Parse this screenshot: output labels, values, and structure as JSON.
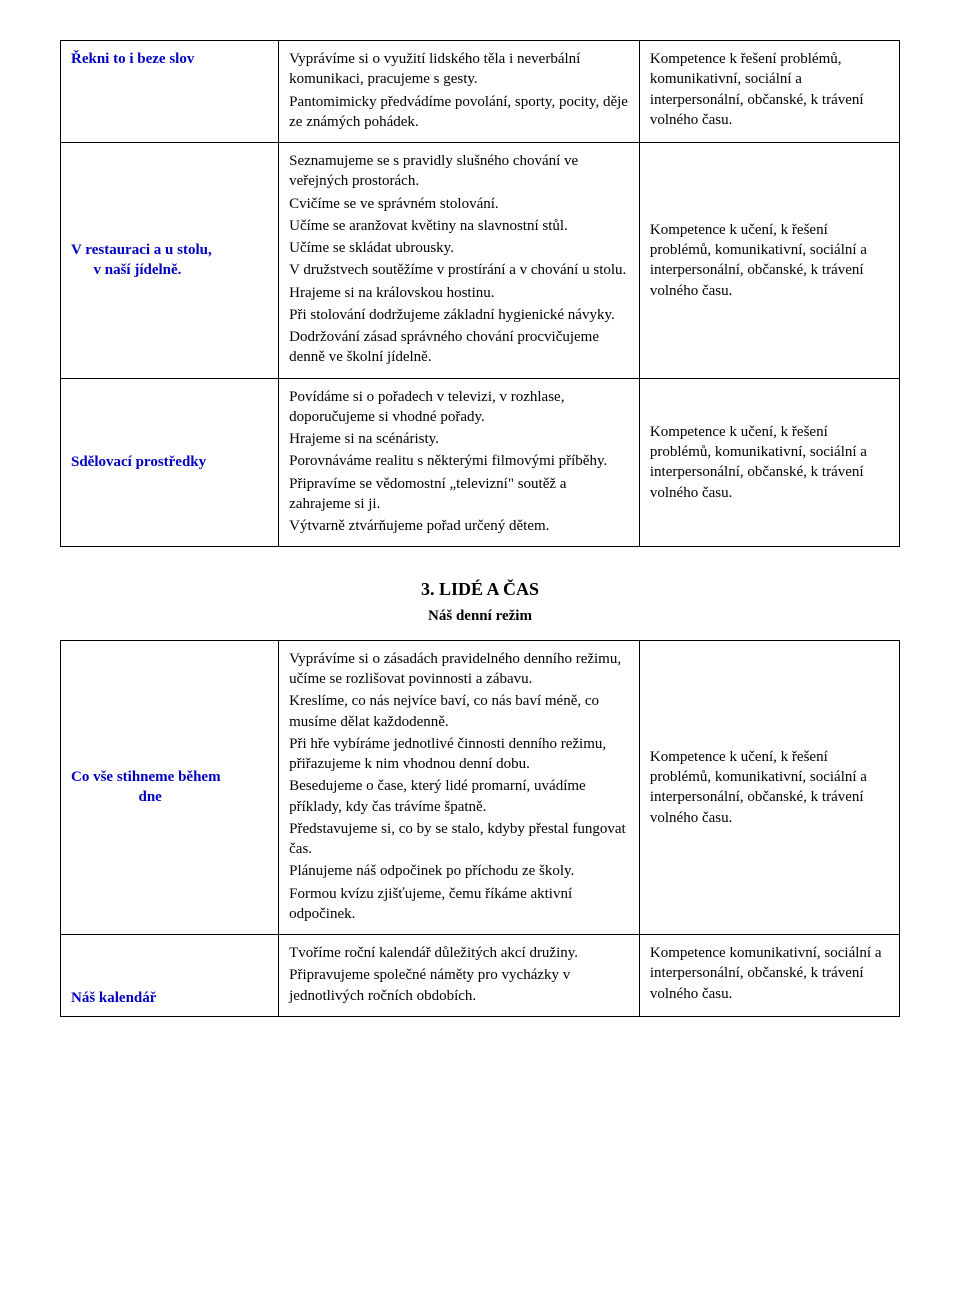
{
  "colors": {
    "topic": "#0000c0",
    "text": "#000000",
    "border": "#000000",
    "background": "#ffffff"
  },
  "typography": {
    "font_family": "Times New Roman",
    "body_size_pt": 11,
    "heading_size_pt": 13
  },
  "table1": {
    "rows": [
      {
        "topic": "Řekni to i beze slov",
        "activity": [
          "Vyprávíme si o využití lidského těla i neverbální komunikaci, pracujeme s gesty.",
          "Pantomimicky předvádíme povolání, sporty, pocity, děje ze známých pohádek."
        ],
        "competence": "Kompetence k řešení problémů, komunikativní, sociální a interpersonální, občanské, k trávení volného času."
      },
      {
        "topic_html": "V restauraci a u stolu,<br>&nbsp;&nbsp;&nbsp;&nbsp;&nbsp;v naší jídelně.",
        "activity": [
          "Seznamujeme se s pravidly slušného chování ve veřejných prostorách.",
          "Cvičíme se ve správném stolování.",
          "Učíme se aranžovat květiny na slavnostní stůl.",
          "Učíme se skládat ubrousky.",
          "V družstvech soutěžíme v prostírání a v chování u stolu.",
          "Hrajeme si na královskou hostinu.",
          "Při stolování dodržujeme základní hygienické návyky.",
          "Dodržování zásad správného chování procvičujeme denně ve školní jídelně."
        ],
        "competence": "Kompetence k učení, k řešení problémů, komunikativní, sociální a interpersonální, občanské, k trávení volného času."
      },
      {
        "topic": "Sdělovací prostředky",
        "activity": [
          "Povídáme si o pořadech v televizi, v rozhlase, doporučujeme si vhodné pořady.",
          "Hrajeme si na scénáristy.",
          "Porovnáváme realitu s některými filmovými příběhy.",
          "Připravíme se vědomostní „televizní\" soutěž a zahrajeme si ji.",
          "Výtvarně ztvárňujeme pořad určený dětem."
        ],
        "competence": "Kompetence k učení, k řešení problémů, komunikativní, sociální a interpersonální, občanské, k trávení volného času."
      }
    ]
  },
  "section2": {
    "number_title": "3.   LIDÉ A ČAS",
    "subtitle": "Náš denní režim"
  },
  "table2": {
    "rows": [
      {
        "topic_html": "Co vše stihneme během<br><span style='display:inline-block;width:100%;text-align:center;'>dne</span>",
        "topic_plain": "Co vše stihneme během dne",
        "activity": [
          "Vyprávíme si o zásadách pravidelného denního režimu, učíme se rozlišovat povinnosti a zábavu.",
          "Kreslíme, co nás nejvíce baví, co nás baví méně, co musíme dělat každodenně.",
          "Při hře vybíráme jednotlivé činnosti denního režimu, přiřazujeme k nim vhodnou denní dobu.",
          "Besedujeme o čase, který lidé promarní, uvádíme příklady, kdy čas trávíme špatně.",
          "Představujeme si, co by se stalo, kdyby přestal fungovat čas.",
          "Plánujeme náš odpočinek po příchodu ze školy.",
          "Formou kvízu zjišťujeme, čemu říkáme aktivní odpočinek."
        ],
        "competence": "Kompetence k učení, k řešení problémů, komunikativní, sociální a interpersonální, občanské, k trávení volného času."
      },
      {
        "topic": "Náš kalendář",
        "activity": [
          "Tvoříme roční kalendář důležitých akcí družiny.",
          "Připravujeme společné náměty pro vycházky v jednotlivých ročních obdobích."
        ],
        "competence": "Kompetence komunikativní, sociální a interpersonální, občanské, k trávení volného času."
      }
    ]
  }
}
